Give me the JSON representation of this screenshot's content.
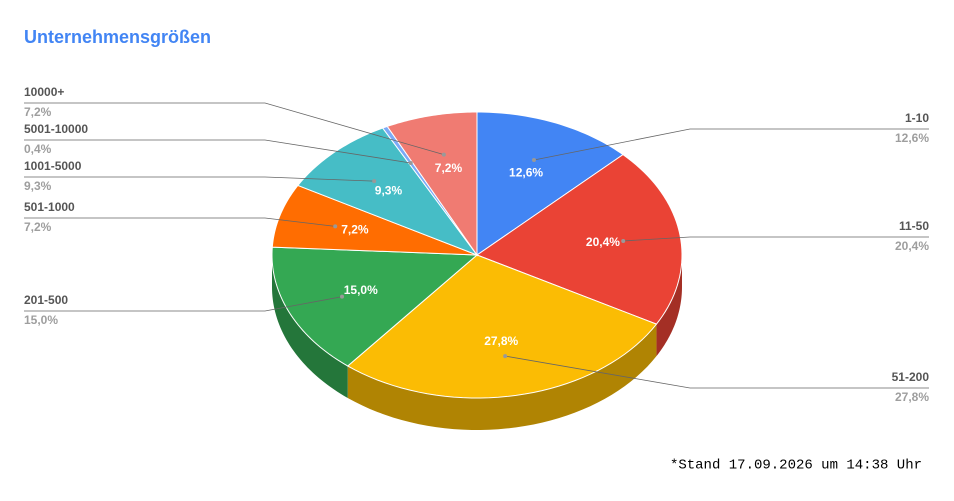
{
  "chart_data": {
    "type": "pie",
    "title": "Unternehmensgrößen",
    "categories": [
      "1-10",
      "11-50",
      "51-200",
      "201-500",
      "501-1000",
      "1001-5000",
      "5001-10000",
      "10000+"
    ],
    "values": [
      12.6,
      20.4,
      27.8,
      15.0,
      7.2,
      9.3,
      0.4,
      7.2
    ],
    "value_labels": [
      "12,6%",
      "20,4%",
      "27,8%",
      "15,0%",
      "7,2%",
      "9,3%",
      "0,4%",
      "7,2%"
    ],
    "colors": [
      "#4285f4",
      "#ea4335",
      "#fbbc04",
      "#34a853",
      "#ff6d01",
      "#46bdc6",
      "#7baaf7",
      "#f07b72"
    ],
    "footnote": "*Stand 17.09.2026 um 14:38 Uhr"
  }
}
